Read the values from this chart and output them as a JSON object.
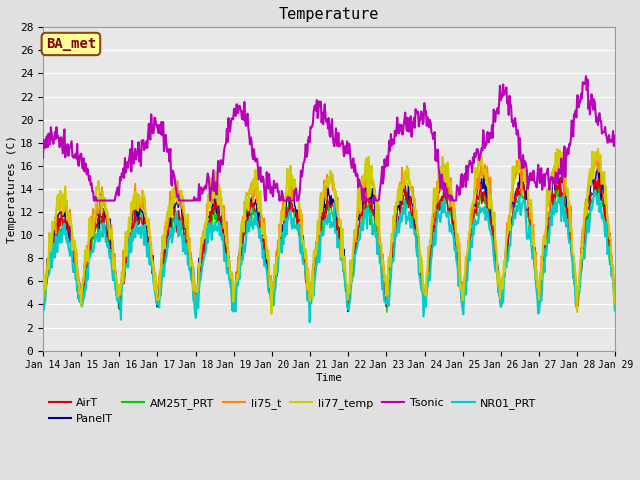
{
  "title": "Temperature",
  "xlabel": "Time",
  "ylabel": "Temperatures (C)",
  "ylim": [
    0,
    28
  ],
  "annotation_text": "BA_met",
  "annotation_color": "#8B0000",
  "annotation_bg": "#FFFF99",
  "annotation_border": "#8B4513",
  "fig_bg": "#E0E0E0",
  "axes_bg": "#E8E8E8",
  "series": {
    "AirT": {
      "color": "#DD0000",
      "lw": 1.0
    },
    "PanelT": {
      "color": "#000099",
      "lw": 1.0
    },
    "AM25T_PRT": {
      "color": "#00CC00",
      "lw": 1.0
    },
    "li75_t": {
      "color": "#FF8800",
      "lw": 1.2
    },
    "li77_temp": {
      "color": "#CCCC00",
      "lw": 1.5
    },
    "Tsonic": {
      "color": "#BB00BB",
      "lw": 1.5
    },
    "NR01_PRT": {
      "color": "#00CCCC",
      "lw": 1.5
    }
  },
  "xtick_labels": [
    "Jan 14",
    "Jan 15",
    "Jan 16",
    "Jan 17",
    "Jan 18",
    "Jan 19",
    "Jan 20",
    "Jan 21",
    "Jan 22",
    "Jan 23",
    "Jan 24",
    "Jan 25",
    "Jan 26",
    "Jan 27",
    "Jan 28",
    "Jan 29"
  ]
}
